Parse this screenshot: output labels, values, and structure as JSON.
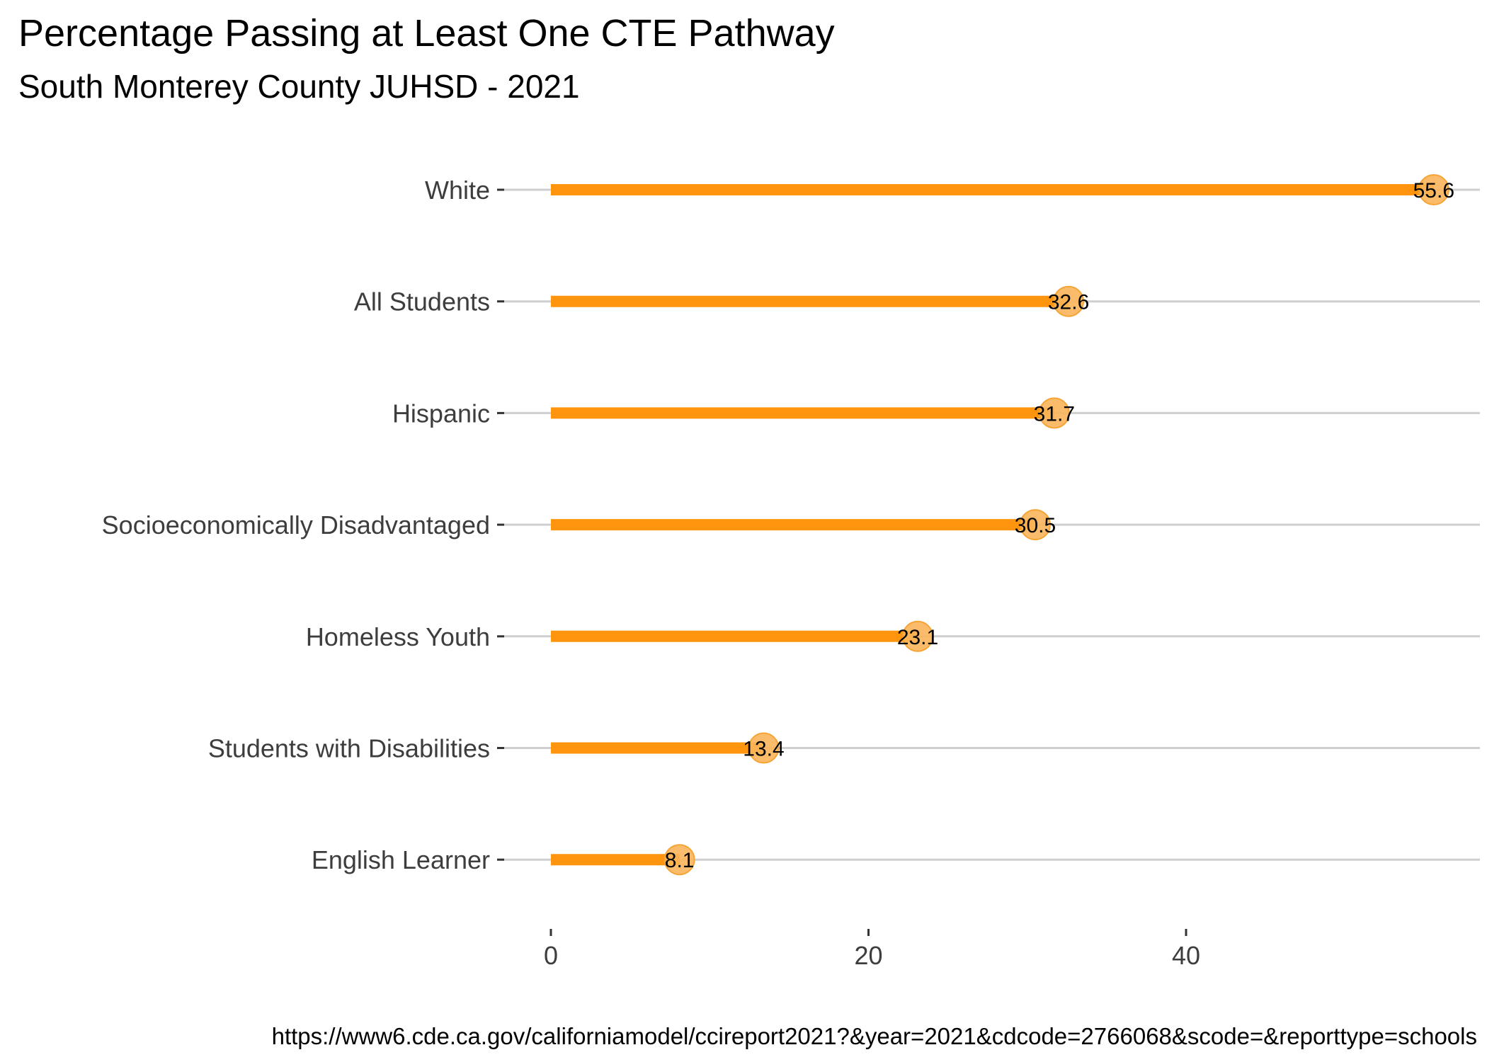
{
  "chart_data": {
    "type": "lollipop",
    "title": "Percentage Passing at Least One CTE Pathway",
    "subtitle": "South Monterey County JUHSD - 2021",
    "caption": "https://www6.cde.ca.gov/californiamodel/ccireport2021?&year=2021&cdcode=2766068&scode=&reporttype=schools",
    "xlabel": "",
    "ylabel": "",
    "categories": [
      "White",
      "All Students",
      "Hispanic",
      "Socioeconomically Disadvantaged",
      "Homeless Youth",
      "Students with Disabilities",
      "English Learner"
    ],
    "values": [
      55.6,
      32.6,
      31.7,
      30.5,
      23.1,
      13.4,
      8.1
    ],
    "value_labels": [
      "55.6",
      "32.6",
      "31.7",
      "30.5",
      "23.1",
      "13.4",
      "8.1"
    ],
    "x_ticks": [
      0,
      20,
      40
    ],
    "x_tick_labels": [
      "0",
      "20",
      "40"
    ],
    "xlim": [
      0,
      58.5
    ],
    "grid": "horizontal major lines only",
    "legend": "none",
    "colors": {
      "stem": "#ff950e",
      "point": "#f9b55a",
      "point_border": "#f6a436",
      "gridline": "#cfcfcf",
      "tick": "#333333"
    }
  }
}
